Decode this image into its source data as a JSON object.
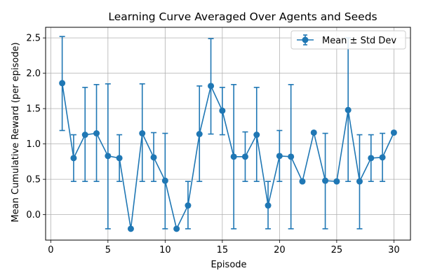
{
  "chart_data": {
    "type": "line",
    "title": "Learning Curve Averaged Over Agents and Seeds",
    "xlabel": "Episode",
    "ylabel": "Mean Cumulative Reward (per episode)",
    "xlim": [
      -0.45,
      31.45
    ],
    "ylim": [
      -0.36,
      2.65
    ],
    "xticks": [
      0,
      5,
      10,
      15,
      20,
      25,
      30
    ],
    "yticks": [
      0.0,
      0.5,
      1.0,
      1.5,
      2.0,
      2.5
    ],
    "xtick_labels": [
      "0",
      "5",
      "10",
      "15",
      "20",
      "25",
      "30"
    ],
    "ytick_labels": [
      "0.0",
      "0.5",
      "1.0",
      "1.5",
      "2.0",
      "2.5"
    ],
    "grid": true,
    "legend_position": "top-right",
    "series": [
      {
        "name": "Mean ± Std Dev",
        "color": "#1f77b4",
        "x": [
          1,
          2,
          3,
          4,
          5,
          6,
          7,
          8,
          9,
          10,
          11,
          12,
          13,
          14,
          15,
          16,
          17,
          18,
          19,
          20,
          21,
          22,
          23,
          24,
          25,
          26,
          27,
          28,
          29,
          30
        ],
        "y": [
          1.86,
          0.8,
          1.13,
          1.15,
          0.83,
          0.8,
          -0.2,
          1.15,
          0.81,
          0.48,
          -0.2,
          0.13,
          1.14,
          1.82,
          1.47,
          0.82,
          0.82,
          1.13,
          0.13,
          0.83,
          0.82,
          0.47,
          1.16,
          0.48,
          0.47,
          1.48,
          0.47,
          0.8,
          0.81,
          1.16
        ],
        "err_low": [
          1.19,
          0.47,
          0.47,
          0.47,
          -0.2,
          0.47,
          -0.2,
          0.47,
          0.47,
          -0.2,
          -0.2,
          -0.2,
          0.47,
          1.14,
          1.13,
          -0.2,
          0.47,
          0.47,
          -0.2,
          0.47,
          -0.2,
          0.47,
          1.16,
          -0.2,
          0.47,
          0.47,
          -0.2,
          0.47,
          0.47,
          1.16
        ],
        "err_high": [
          2.52,
          1.13,
          1.8,
          1.84,
          1.85,
          1.13,
          -0.2,
          1.85,
          1.16,
          1.15,
          -0.2,
          0.47,
          1.82,
          2.49,
          1.8,
          1.84,
          1.17,
          1.8,
          0.47,
          1.19,
          1.84,
          0.47,
          1.16,
          1.15,
          0.47,
          2.5,
          1.13,
          1.13,
          1.15,
          1.16
        ]
      }
    ]
  }
}
